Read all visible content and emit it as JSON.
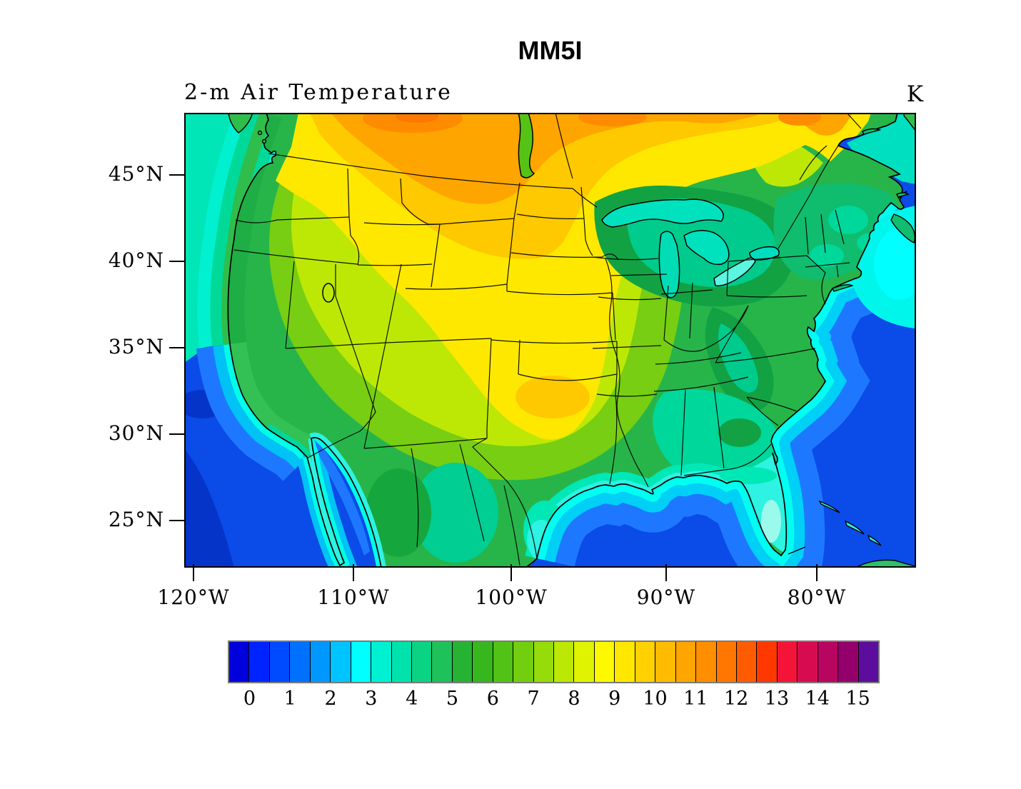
{
  "figure": {
    "title": "MM5I",
    "subtitle": "2-m Air Temperature",
    "units_label": "K"
  },
  "map": {
    "description": "Filled-contour map of 2-m air temperature over the continental United States with state and coastline boundaries",
    "projection": "Lambert conformal (CONUS regional model domain)",
    "x_axis": {
      "ticks": [
        "120°W",
        "110°W",
        "100°W",
        "90°W",
        "80°W"
      ]
    },
    "y_axis": {
      "ticks": [
        "45°N",
        "40°N",
        "35°N",
        "30°N",
        "25°N"
      ]
    }
  },
  "colorbar": {
    "labels": [
      "0",
      "1",
      "2",
      "3",
      "4",
      "5",
      "6",
      "7",
      "8",
      "9",
      "10",
      "11",
      "12",
      "13",
      "14",
      "15"
    ],
    "cells_per_label_interval": 2,
    "value_step_per_cell": 0.5,
    "colors": [
      "#0000DC",
      "#0024FF",
      "#004AFF",
      "#0070FF",
      "#0098FF",
      "#00C4FF",
      "#00FFFF",
      "#00F0D2",
      "#00E2AC",
      "#0AD384",
      "#1EC15A",
      "#26B232",
      "#35B71D",
      "#52C216",
      "#73CE10",
      "#96DB0A",
      "#BBE805",
      "#E0F402",
      "#FFF900",
      "#FFE700",
      "#FFD100",
      "#FFBB00",
      "#FFA500",
      "#FF8F00",
      "#FF7700",
      "#FF5B00",
      "#FF3800",
      "#F31437",
      "#D70C50",
      "#B70560",
      "#93006B",
      "#5C0D9E"
    ]
  },
  "chart_data": {
    "type": "heatmap",
    "title": "MM5I",
    "subtitle": "2-m Air Temperature",
    "units": "K",
    "x_ticks": [
      "120°W",
      "110°W",
      "100°W",
      "90°W",
      "80°W"
    ],
    "y_ticks": [
      "45°N",
      "40°N",
      "35°N",
      "30°N",
      "25°N"
    ],
    "levels_min": 0,
    "levels_max": 15,
    "level_step": 0.5,
    "legend_position": "bottom",
    "palette": [
      "#0000DC",
      "#0024FF",
      "#004AFF",
      "#0070FF",
      "#0098FF",
      "#00C4FF",
      "#00FFFF",
      "#00F0D2",
      "#00E2AC",
      "#0AD384",
      "#1EC15A",
      "#26B232",
      "#35B71D",
      "#52C216",
      "#73CE10",
      "#96DB0A",
      "#BBE805",
      "#E0F402",
      "#FFF900",
      "#FFE700",
      "#FFD100",
      "#FFBB00",
      "#FFA500",
      "#FF8F00",
      "#FF7700",
      "#FF5B00",
      "#FF3800",
      "#F31437",
      "#D70C50",
      "#B70560",
      "#93006B",
      "#5C0D9E"
    ],
    "regions": [
      {
        "name": "Pacific Ocean offshore California/Baja",
        "approx_value_K": [
          1.0,
          2.5
        ]
      },
      {
        "name": "Pacific Ocean off Pacific Northwest",
        "approx_value_K": [
          2.5,
          4.0
        ]
      },
      {
        "name": "West Coast strip (WA/OR/CA)",
        "approx_value_K": [
          4.0,
          5.5
        ]
      },
      {
        "name": "Great Basin / interior West",
        "approx_value_K": [
          5.0,
          7.0
        ]
      },
      {
        "name": "Northern Plains (MT/ND) and southern Canada top edge",
        "approx_value_K": [
          9.5,
          11.5
        ]
      },
      {
        "name": "Central Plains (NE/KS/OK yellow tongue)",
        "approx_value_K": [
          7.5,
          9.0
        ]
      },
      {
        "name": "Texas interior",
        "approx_value_K": [
          6.0,
          7.5
        ]
      },
      {
        "name": "Upper Midwest / Great Lakes",
        "approx_value_K": [
          4.0,
          5.5
        ]
      },
      {
        "name": "Northeast US / New England",
        "approx_value_K": [
          4.5,
          5.5
        ]
      },
      {
        "name": "Appalachians",
        "approx_value_K": [
          4.5,
          5.5
        ]
      },
      {
        "name": "Southeast US (AL/GA/MS)",
        "approx_value_K": [
          4.5,
          6.0
        ]
      },
      {
        "name": "Gulf Coast strip",
        "approx_value_K": [
          3.0,
          4.0
        ]
      },
      {
        "name": "Florida peninsula",
        "approx_value_K": [
          2.5,
          3.5
        ]
      },
      {
        "name": "Gulf of Mexico",
        "approx_value_K": [
          1.5,
          2.5
        ]
      },
      {
        "name": "Atlantic offshore / NW Atlantic cyan pool",
        "approx_value_K": [
          1.5,
          3.0
        ]
      },
      {
        "name": "Quebec yellow band (top right)",
        "approx_value_K": [
          7.5,
          9.0
        ]
      }
    ]
  }
}
